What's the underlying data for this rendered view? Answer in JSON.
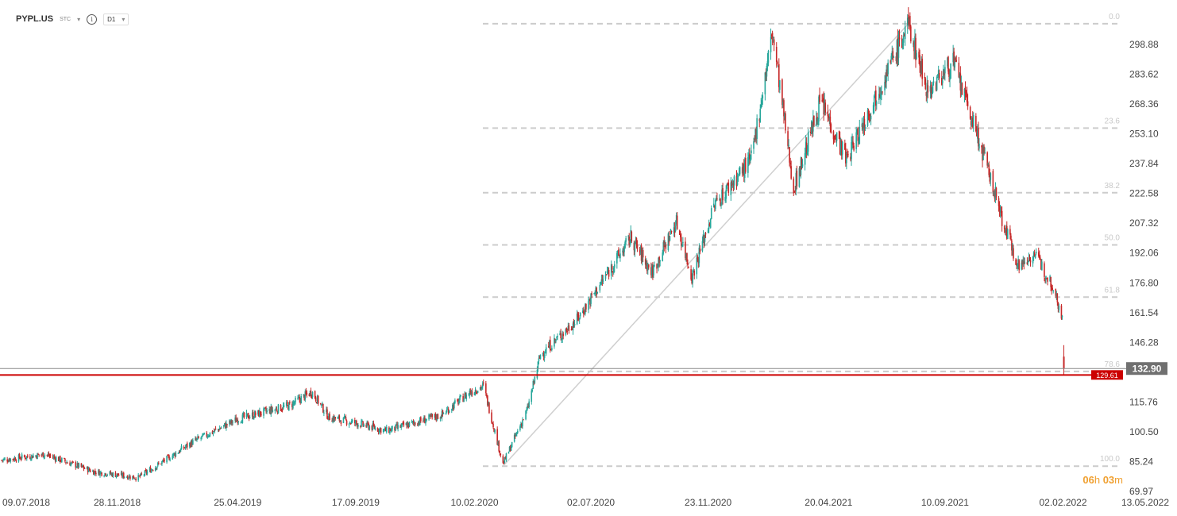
{
  "header": {
    "symbol": "PYPL.US",
    "instrument_type": "STC",
    "timeframe": "D1",
    "info_icon": "info-icon",
    "caret_icon": "chevron-down-icon"
  },
  "countdown": {
    "hours": "06",
    "h_unit": "h",
    "minutes": "03",
    "m_unit": "m"
  },
  "chart_data": {
    "type": "candlestick",
    "y_ticks": [
      "298.88",
      "283.62",
      "268.36",
      "253.10",
      "237.84",
      "222.58",
      "207.32",
      "192.06",
      "176.80",
      "161.54",
      "146.28",
      "115.76",
      "100.50",
      "85.24",
      "69.97"
    ],
    "y_range": [
      69.97,
      314.14
    ],
    "x_ticks": [
      "09.07.2018",
      "28.11.2018",
      "25.04.2019",
      "17.09.2019",
      "10.02.2020",
      "02.07.2020",
      "23.11.2020",
      "20.04.2021",
      "10.09.2021",
      "02.02.2022",
      "13.05.2022"
    ],
    "price_line": {
      "label": "132.90",
      "value": 132.9
    },
    "alert_line": {
      "label": "129.61",
      "value": 129.61
    },
    "fibonacci": {
      "low": 82.9,
      "high": 309.5,
      "levels": [
        {
          "label": "0.0",
          "ratio": 0.0
        },
        {
          "label": "23.6",
          "ratio": 0.236
        },
        {
          "label": "38.2",
          "ratio": 0.382
        },
        {
          "label": "50.0",
          "ratio": 0.5
        },
        {
          "label": "61.8",
          "ratio": 0.618
        },
        {
          "label": "78.6",
          "ratio": 0.786
        },
        {
          "label": "100.0",
          "ratio": 1.0
        }
      ]
    },
    "trendline": {
      "from": {
        "date": "2020-03-16",
        "price": 82.9
      },
      "to": {
        "date": "2021-07-27",
        "price": 309.5
      }
    },
    "series_anchors": [
      {
        "date": "2018-07-09",
        "close": 86
      },
      {
        "date": "2018-08-31",
        "close": 89
      },
      {
        "date": "2018-10-31",
        "close": 80
      },
      {
        "date": "2018-12-24",
        "close": 77
      },
      {
        "date": "2019-02-28",
        "close": 95
      },
      {
        "date": "2019-04-25",
        "close": 107
      },
      {
        "date": "2019-06-28",
        "close": 114
      },
      {
        "date": "2019-07-25",
        "close": 121
      },
      {
        "date": "2019-08-15",
        "close": 108
      },
      {
        "date": "2019-09-17",
        "close": 105
      },
      {
        "date": "2019-10-25",
        "close": 101
      },
      {
        "date": "2019-12-31",
        "close": 109
      },
      {
        "date": "2020-02-05",
        "close": 121
      },
      {
        "date": "2020-02-21",
        "close": 124
      },
      {
        "date": "2020-03-16",
        "close": 84
      },
      {
        "date": "2020-04-15",
        "close": 112
      },
      {
        "date": "2020-05-01",
        "close": 140
      },
      {
        "date": "2020-06-15",
        "close": 158
      },
      {
        "date": "2020-07-15",
        "close": 177
      },
      {
        "date": "2020-08-20",
        "close": 200
      },
      {
        "date": "2020-09-15",
        "close": 182
      },
      {
        "date": "2020-10-15",
        "close": 208
      },
      {
        "date": "2020-11-03",
        "close": 180
      },
      {
        "date": "2020-12-01",
        "close": 217
      },
      {
        "date": "2021-01-15",
        "close": 240
      },
      {
        "date": "2021-02-10",
        "close": 305
      },
      {
        "date": "2021-03-08",
        "close": 225
      },
      {
        "date": "2021-04-10",
        "close": 270
      },
      {
        "date": "2021-05-12",
        "close": 240
      },
      {
        "date": "2021-07-27",
        "close": 309
      },
      {
        "date": "2021-08-20",
        "close": 275
      },
      {
        "date": "2021-09-20",
        "close": 290
      },
      {
        "date": "2021-10-25",
        "close": 245
      },
      {
        "date": "2021-11-10",
        "close": 223
      },
      {
        "date": "2021-11-20",
        "close": 208
      },
      {
        "date": "2021-12-10",
        "close": 185
      },
      {
        "date": "2021-12-28",
        "close": 192
      },
      {
        "date": "2022-01-20",
        "close": 176
      },
      {
        "date": "2022-02-01",
        "close": 160
      },
      {
        "date": "2022-02-02",
        "close": 170
      }
    ],
    "last_candle": {
      "date": "2022-02-03",
      "open": 139,
      "high": 140,
      "low": 129.6,
      "close": 132.9
    },
    "colors": {
      "up": "#26a69a",
      "down": "#c62828",
      "fib_line": "#cccccc",
      "trendline": "#cfcfcf",
      "price_line": "#888888",
      "price_label_bg": "#707070",
      "alert_line": "#cc0000",
      "countdown": "#f0a030"
    }
  }
}
